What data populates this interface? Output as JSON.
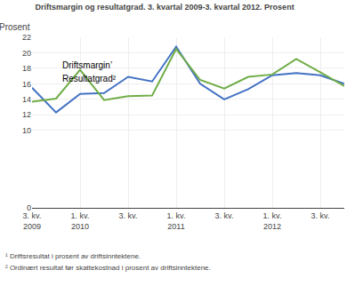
{
  "chart_data": {
    "type": "line",
    "title": "Driftsmargin og resultatgrad. 3. kvartal 2009-3. kvartal 2012. Prosent",
    "ylabel": "Prosent",
    "categories": [
      "3. kv.\n2009",
      null,
      "1. kv.\n2010",
      null,
      "3. kv.",
      null,
      "1. kv.\n2011",
      null,
      "3. kv.",
      null,
      "1. kv.\n2012",
      null,
      "3. kv.",
      null
    ],
    "series": [
      {
        "color": "#4472c4",
        "values": [
          15.5,
          12.3,
          14.7,
          14.8,
          16.9,
          16.3,
          20.8,
          16.0,
          14.0,
          15.3,
          17.1,
          17.4,
          17.1,
          16.0
        ]
      },
      {
        "color": "#70ad47",
        "values": [
          13.7,
          14.1,
          17.8,
          13.9,
          14.4,
          14.5,
          20.5,
          16.5,
          15.4,
          16.9,
          17.2,
          19.2,
          17.5,
          15.7
        ]
      }
    ],
    "annotations": [
      {
        "text": "Driftsmargin’",
        "x": 1.2,
        "y": 17.5
      },
      {
        "text": "Resultatgrad²",
        "x": 1.2,
        "y": 15.8
      }
    ],
    "footnotes": [
      "¹ Driftsresultat i prosent av driftsinntektene.",
      "² Ordinært resultat før skattekostnad i prosent av driftsinntektene."
    ],
    "ylim": [
      0,
      22
    ],
    "yticks": [
      0,
      10,
      12,
      14,
      16,
      18,
      20,
      22
    ],
    "grid": true
  }
}
